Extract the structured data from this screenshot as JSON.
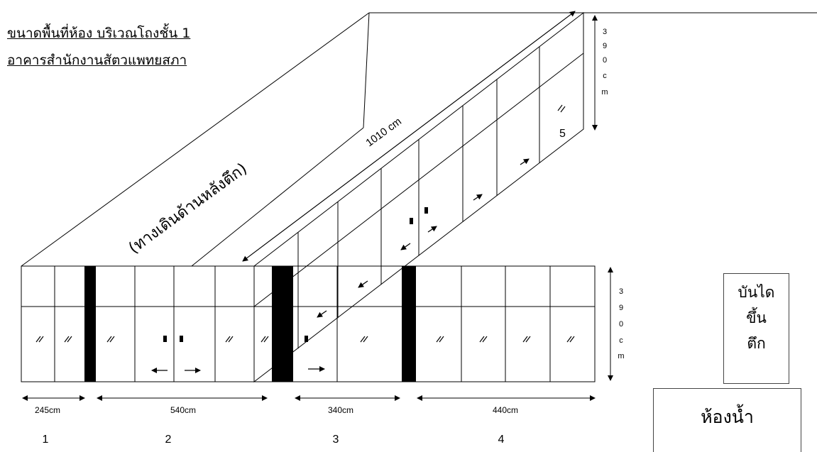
{
  "title": {
    "line1": "ขนาดพื้นที่ห้อง บริเวณโถงชั้น 1",
    "line2": "อาคารสำนักงานสัตวแพทยสภา"
  },
  "walkway_label": "(ทางเดินด้านหลังตึก)",
  "side_length_label": "1010 cm",
  "height_label_vertical": [
    "3",
    "9",
    "0",
    "c",
    "m"
  ],
  "front_height_label_vertical": [
    "3",
    "9",
    "0",
    "c",
    "m"
  ],
  "dimensions": [
    {
      "label": "245cm"
    },
    {
      "label": "540cm"
    },
    {
      "label": "340cm"
    },
    {
      "label": "440cm"
    }
  ],
  "section_numbers": [
    "1",
    "2",
    "3",
    "4"
  ],
  "side_section_number": "5",
  "stairs_label": [
    "บันได",
    "ขึ้น",
    "ตึก"
  ],
  "toilet_label": "ห้องน้ำ",
  "colors": {
    "line": "#000000",
    "pillar": "#000000",
    "background": "#ffffff"
  }
}
